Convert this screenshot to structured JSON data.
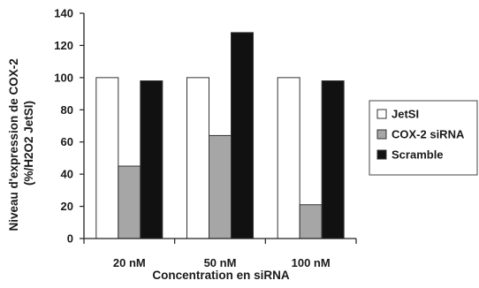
{
  "chart_data": {
    "type": "bar",
    "categories": [
      "20 nM",
      "50 nM",
      "100 nM"
    ],
    "series": [
      {
        "name": "JetSI",
        "values": [
          100,
          100,
          100
        ],
        "color": "#ffffff"
      },
      {
        "name": "COX-2 siRNA",
        "values": [
          45,
          64,
          21
        ],
        "color": "#a6a6a6"
      },
      {
        "name": "Scramble",
        "values": [
          98,
          128,
          98
        ],
        "color": "#111111"
      }
    ],
    "xlabel": "Concentration en siRNA",
    "ylabel": [
      "Niveau d'expression de COX-2",
      "(%/H2O2 JetSI)"
    ],
    "ylim": [
      0,
      140
    ],
    "yticks": [
      0,
      20,
      40,
      60,
      80,
      100,
      120,
      140
    ],
    "legend_position": "right",
    "grid": false
  }
}
